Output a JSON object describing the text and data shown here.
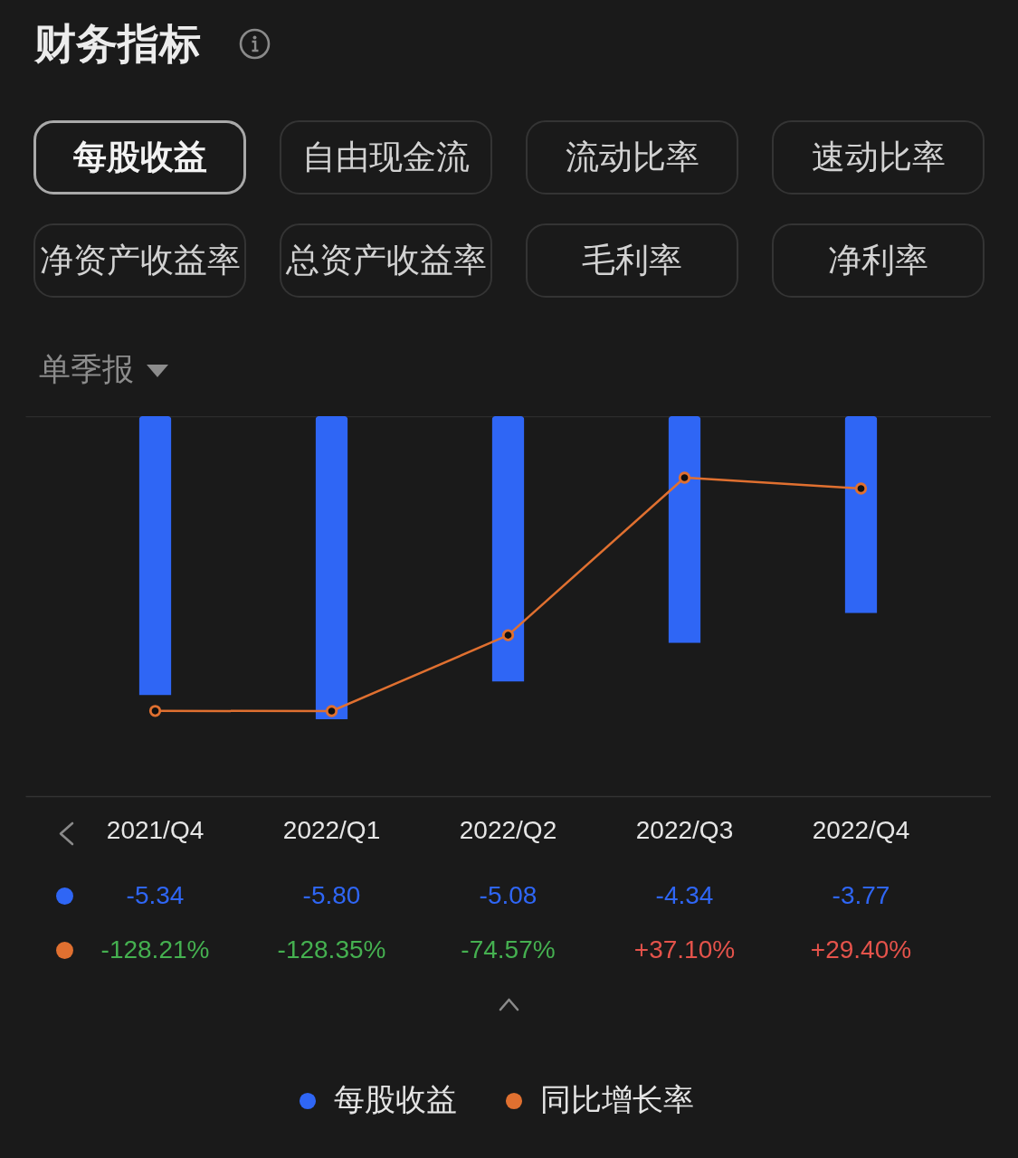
{
  "chart_data": {
    "type": "bar",
    "title": "财务指标",
    "annotations": [
      "每股收益",
      "自由现金流",
      "流动比率",
      "速动比率",
      "净资产收益率",
      "总资产收益率",
      "毛利率",
      "净利率",
      "单季报"
    ],
    "categories": [
      "2021/Q4",
      "2022/Q1",
      "2022/Q2",
      "2022/Q3",
      "2022/Q4"
    ],
    "series": [
      {
        "name": "每股收益",
        "color": "#2f66f5",
        "values": [
          -5.34,
          -5.8,
          -5.08,
          -4.34,
          -3.77
        ],
        "value_labels": [
          "-5.34",
          "-5.80",
          "-5.08",
          "-4.34",
          "-3.77"
        ]
      },
      {
        "name": "同比增长率",
        "type": "line",
        "axis": "y2",
        "color": "#e07030",
        "values": [
          -128.21,
          -128.35,
          -74.57,
          37.1,
          29.4
        ],
        "value_labels": [
          "-128.21%",
          "-128.35%",
          "-74.57%",
          "+37.10%",
          "+29.40%"
        ]
      }
    ],
    "legend": "bottom",
    "marker": "circle",
    "line_style": "solid",
    "tick_labels": "x"
  }
}
